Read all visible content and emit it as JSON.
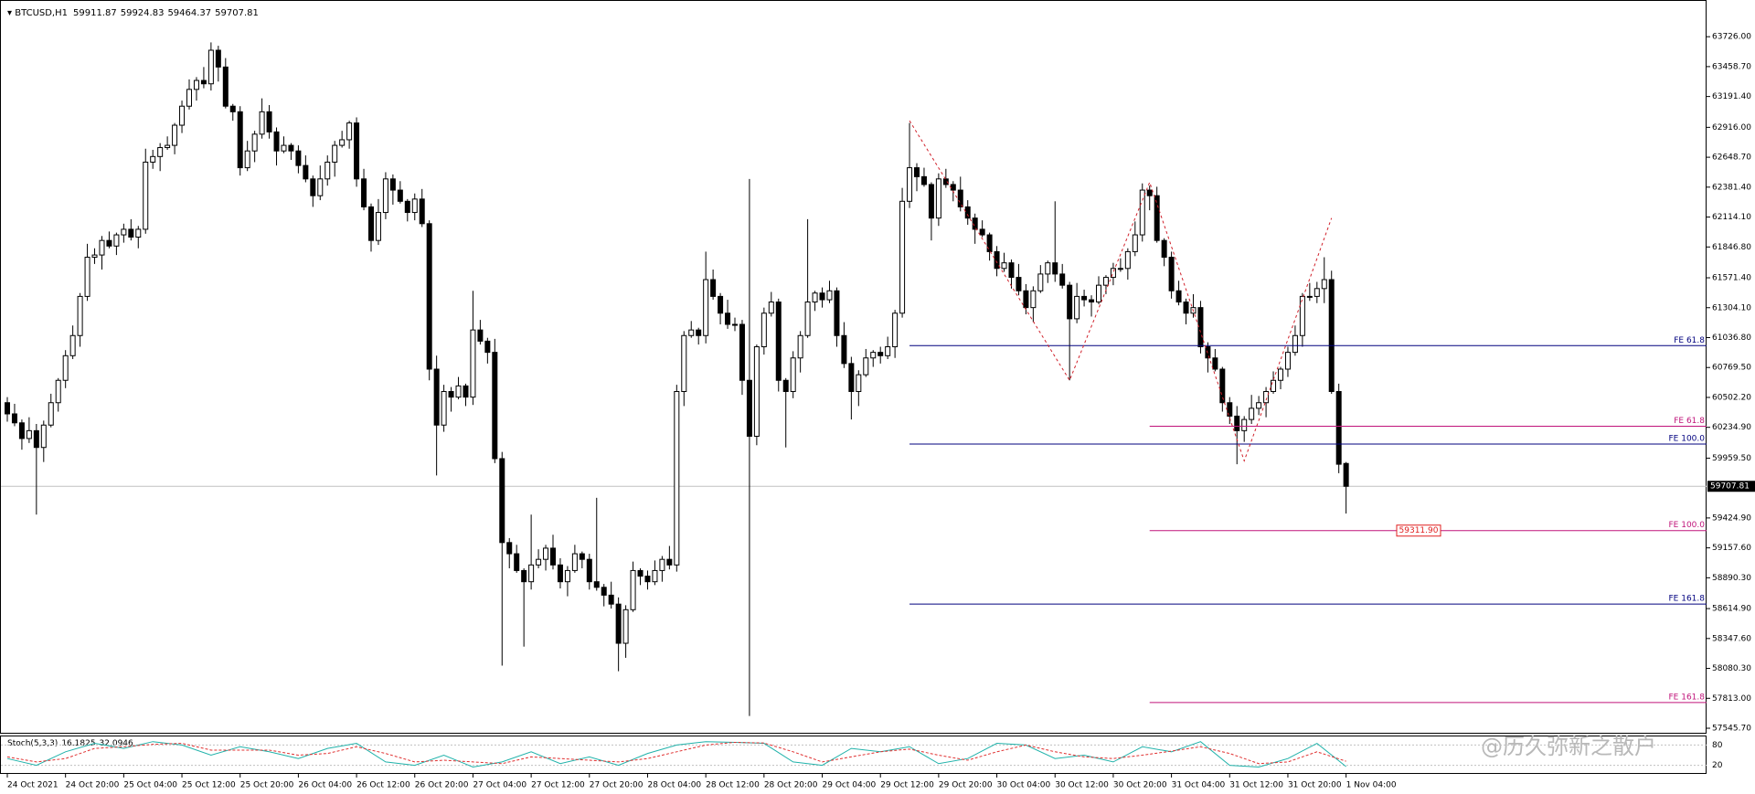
{
  "chart_data": {
    "type": "candlestick",
    "symbol": "BTCUSD,H1",
    "categories": [
      "24 Oct 2021",
      null,
      null,
      null,
      null,
      null,
      null,
      null,
      "24 Oct 20:00",
      null,
      null,
      null,
      null,
      null,
      null,
      null,
      "25 Oct 04:00",
      null,
      null,
      null,
      null,
      null,
      null,
      null,
      "25 Oct 12:00",
      null,
      null,
      null,
      null,
      null,
      null,
      null,
      "25 Oct 20:00",
      null,
      null,
      null,
      null,
      null,
      null,
      null,
      "26 Oct 04:00",
      null,
      null,
      null,
      null,
      null,
      null,
      null,
      "26 Oct 12:00",
      null,
      null,
      null,
      null,
      null,
      null,
      null,
      "26 Oct 20:00",
      null,
      null,
      null,
      null,
      null,
      null,
      null,
      "27 Oct 04:00",
      null,
      null,
      null,
      null,
      null,
      null,
      null,
      "27 Oct 12:00",
      null,
      null,
      null,
      null,
      null,
      null,
      null,
      "27 Oct 20:00",
      null,
      null,
      null,
      null,
      null,
      null,
      null,
      "28 Oct 04:00",
      null,
      null,
      null,
      null,
      null,
      null,
      null,
      "28 Oct 12:00",
      null,
      null,
      null,
      null,
      null,
      null,
      null,
      "28 Oct 20:00",
      null,
      null,
      null,
      null,
      null,
      null,
      null,
      "29 Oct 04:00",
      null,
      null,
      null,
      null,
      null,
      null,
      null,
      "29 Oct 12:00",
      null,
      null,
      null,
      null,
      null,
      null,
      null,
      "29 Oct 20:00",
      null,
      null,
      null,
      null,
      null,
      null,
      null,
      "30 Oct 04:00",
      null,
      null,
      null,
      null,
      null,
      null,
      null,
      "30 Oct 12:00",
      null,
      null,
      null,
      null,
      null,
      null,
      null,
      "30 Oct 20:00",
      null,
      null,
      null,
      null,
      null,
      null,
      null,
      "31 Oct 04:00",
      null,
      null,
      null,
      null,
      null,
      null,
      null,
      "31 Oct 12:00",
      null,
      null,
      null,
      null,
      null,
      null,
      null,
      "31 Oct 20:00",
      null,
      null,
      null,
      null,
      null,
      null,
      null,
      "1 Nov 04:00"
    ],
    "open": [
      60455,
      60355,
      60275,
      60135,
      60205,
      60055,
      60255,
      60455,
      60655,
      60875,
      61055,
      61405,
      61755,
      61775,
      61905,
      61855,
      61955,
      62005,
      61935,
      62005,
      62605,
      62655,
      62735,
      62755,
      62935,
      63105,
      63255,
      63335,
      63305,
      63605,
      63455,
      63105,
      63055,
      62555,
      62705,
      62855,
      63055,
      62875,
      62705,
      62755,
      62705,
      62575,
      62455,
      62305,
      62455,
      62605,
      62755,
      62805,
      62955,
      62455,
      62205,
      61905,
      62155,
      62455,
      62355,
      62255,
      62155,
      62275,
      62055,
      60755,
      60255,
      60555,
      60505,
      60605,
      60505,
      61105,
      61005,
      60905,
      59955,
      59205,
      59105,
      58955,
      58855,
      59005,
      59055,
      59155,
      59005,
      58855,
      58955,
      59105,
      59055,
      58855,
      58805,
      58735,
      58655,
      58305,
      58605,
      58955,
      58905,
      58855,
      58955,
      59055,
      59005,
      60555,
      61055,
      61105,
      61055,
      61555,
      61405,
      61255,
      61155,
      61155,
      60655,
      60155,
      60955,
      61255,
      61355,
      60655,
      60555,
      60855,
      61055,
      61355,
      61435,
      61375,
      61455,
      61055,
      60805,
      60555,
      60705,
      60855,
      60905,
      60875,
      60955,
      61255,
      62255,
      62555,
      62475,
      62405,
      62105,
      62455,
      62405,
      62355,
      62205,
      62105,
      62005,
      61955,
      61805,
      61655,
      61705,
      61575,
      61455,
      61305,
      61455,
      61605,
      61705,
      61605,
      61505,
      61205,
      61405,
      61375,
      61355,
      61505,
      61575,
      61655,
      61655,
      61805,
      61955,
      62355,
      62305,
      61905,
      61755,
      61455,
      61355,
      61255,
      61305,
      60955,
      60855,
      60755,
      60455,
      60335,
      60205,
      60305,
      60405,
      60455,
      60555,
      60655,
      60755,
      60905,
      61055,
      61405,
      61405,
      61475,
      61555,
      60555,
      59911.87
    ],
    "high": [
      60505,
      60445,
      60305,
      60325,
      60265,
      60295,
      60535,
      60675,
      60925,
      61145,
      61435,
      61875,
      61835,
      61945,
      61985,
      61975,
      62055,
      62095,
      62035,
      62725,
      62715,
      62775,
      62835,
      62955,
      63155,
      63345,
      63365,
      63455,
      63675,
      63645,
      63535,
      63125,
      63105,
      62795,
      62885,
      63175,
      63115,
      62915,
      62835,
      62775,
      62755,
      62665,
      62485,
      62575,
      62665,
      62795,
      62885,
      62975,
      63005,
      62545,
      62235,
      62275,
      62515,
      62495,
      62435,
      62275,
      62325,
      62365,
      62085,
      60875,
      60615,
      60595,
      60685,
      60625,
      61455,
      61195,
      61035,
      61025,
      60015,
      59245,
      59185,
      58975,
      59455,
      59145,
      59185,
      59275,
      59065,
      58995,
      59185,
      59125,
      59105,
      59605,
      58835,
      58855,
      58715,
      58645,
      59035,
      58975,
      58955,
      59045,
      59085,
      59175,
      60615,
      61095,
      61185,
      61125,
      61805,
      61645,
      61435,
      61375,
      61215,
      61195,
      62455,
      60975,
      61305,
      61445,
      61385,
      60675,
      60915,
      61095,
      62095,
      61455,
      61485,
      61545,
      61485,
      61175,
      60865,
      60745,
      60935,
      60925,
      60955,
      61045,
      61285,
      62375,
      62955,
      62595,
      62555,
      62425,
      62505,
      62545,
      62435,
      62475,
      62265,
      62145,
      62085,
      61975,
      61855,
      61795,
      61735,
      61695,
      61515,
      61495,
      61685,
      61725,
      62255,
      61695,
      61535,
      61525,
      61465,
      61415,
      61585,
      61595,
      61705,
      61745,
      61835,
      62075,
      62415,
      62395,
      62385,
      61925,
      61805,
      61545,
      61385,
      61425,
      61365,
      60995,
      60935,
      60775,
      60505,
      60425,
      60335,
      60525,
      60515,
      60595,
      60735,
      60775,
      60955,
      61145,
      61435,
      61525,
      61535,
      61755,
      61635,
      60625,
      59924.83
    ],
    "low": [
      60285,
      60245,
      60035,
      60095,
      59455,
      59925,
      60235,
      60375,
      60585,
      60845,
      60955,
      61365,
      61695,
      61645,
      61835,
      61775,
      61885,
      61905,
      61835,
      61965,
      62545,
      62525,
      62715,
      62675,
      62865,
      63075,
      63155,
      63265,
      63245,
      63325,
      63085,
      62975,
      62485,
      62525,
      62605,
      62815,
      62815,
      62575,
      62685,
      62625,
      62505,
      62425,
      62205,
      62265,
      62395,
      62475,
      62735,
      62725,
      62385,
      62175,
      61805,
      61865,
      62095,
      62225,
      62235,
      62075,
      62085,
      62025,
      60655,
      59805,
      60195,
      60375,
      60485,
      60425,
      60435,
      60975,
      60805,
      59915,
      58105,
      58975,
      58935,
      58275,
      58785,
      58975,
      58955,
      58965,
      58795,
      58725,
      58935,
      58975,
      58785,
      58775,
      58635,
      58615,
      58055,
      58175,
      58585,
      58825,
      58785,
      58825,
      58855,
      58965,
      58945,
      60425,
      61035,
      60975,
      60985,
      61375,
      61155,
      61115,
      61095,
      60525,
      57655,
      60075,
      60885,
      61225,
      60555,
      60055,
      60495,
      60725,
      61035,
      61275,
      61305,
      61345,
      60955,
      60765,
      60305,
      60425,
      60685,
      60775,
      60805,
      60845,
      60855,
      61215,
      62195,
      62345,
      62385,
      61905,
      62035,
      62375,
      62255,
      62165,
      62045,
      61875,
      61935,
      61725,
      61585,
      61625,
      61475,
      61415,
      61245,
      61175,
      61435,
      61525,
      61535,
      61475,
      60655,
      61165,
      61315,
      61225,
      61335,
      61425,
      61505,
      61625,
      61555,
      61765,
      61895,
      62175,
      61885,
      61675,
      61385,
      61325,
      61155,
      61215,
      60895,
      60725,
      60735,
      60375,
      60265,
      59905,
      60105,
      60265,
      60345,
      60325,
      60535,
      60575,
      60685,
      60875,
      60955,
      61365,
      61345,
      61345,
      60535,
      59825,
      59464.37
    ],
    "close": [
      60355,
      60275,
      60135,
      60205,
      60055,
      60255,
      60455,
      60655,
      60875,
      61055,
      61405,
      61755,
      61775,
      61905,
      61855,
      61955,
      62005,
      61935,
      62005,
      62605,
      62655,
      62735,
      62755,
      62935,
      63105,
      63255,
      63335,
      63305,
      63605,
      63455,
      63105,
      63055,
      62555,
      62705,
      62855,
      63055,
      62875,
      62705,
      62755,
      62705,
      62575,
      62455,
      62305,
      62455,
      62605,
      62755,
      62805,
      62955,
      62455,
      62205,
      61905,
      62155,
      62455,
      62355,
      62255,
      62155,
      62275,
      62055,
      60755,
      60255,
      60555,
      60505,
      60605,
      60505,
      61105,
      61005,
      60905,
      59955,
      59205,
      59105,
      58955,
      58855,
      59005,
      59055,
      59155,
      59005,
      58855,
      58955,
      59105,
      59055,
      58855,
      58805,
      58735,
      58655,
      58305,
      58605,
      58955,
      58905,
      58855,
      58955,
      59055,
      59005,
      60555,
      61055,
      61105,
      61055,
      61555,
      61405,
      61255,
      61155,
      61155,
      60655,
      60155,
      60955,
      61255,
      61355,
      60655,
      60555,
      60855,
      61055,
      61355,
      61435,
      61375,
      61455,
      61055,
      60805,
      60555,
      60705,
      60855,
      60905,
      60875,
      60955,
      61255,
      62255,
      62555,
      62475,
      62405,
      62105,
      62455,
      62405,
      62355,
      62205,
      62105,
      62005,
      61955,
      61805,
      61655,
      61705,
      61575,
      61455,
      61305,
      61455,
      61605,
      61705,
      61605,
      61505,
      61205,
      61405,
      61375,
      61355,
      61505,
      61575,
      61655,
      61655,
      61805,
      61955,
      62355,
      62305,
      61905,
      61755,
      61455,
      61355,
      61255,
      61305,
      60955,
      60855,
      60755,
      60455,
      60335,
      60205,
      60305,
      60405,
      60455,
      60555,
      60655,
      60755,
      60905,
      61055,
      61405,
      61405,
      61475,
      61555,
      60555,
      59905,
      59707.81
    ],
    "up_color": "#ffffff",
    "down_color": "#000000",
    "ylim": [
      57505,
      64005
    ],
    "yticks": [
      {
        "value": 63726,
        "label": "63726.00"
      },
      {
        "value": 63458.7,
        "label": "63458.70"
      },
      {
        "value": 63191.4,
        "label": "63191.40"
      },
      {
        "value": 62916,
        "label": "62916.00"
      },
      {
        "value": 62648.7,
        "label": "62648.70"
      },
      {
        "value": 62381.4,
        "label": "62381.40"
      },
      {
        "value": 62114.1,
        "label": "62114.10"
      },
      {
        "value": 61846.8,
        "label": "61846.80"
      },
      {
        "value": 61571.4,
        "label": "61571.40"
      },
      {
        "value": 61304.1,
        "label": "61304.10"
      },
      {
        "value": 61036.8,
        "label": "61036.80"
      },
      {
        "value": 60769.5,
        "label": "60769.50"
      },
      {
        "value": 60502.2,
        "label": "60502.20"
      },
      {
        "value": 60234.9,
        "label": "60234.90"
      },
      {
        "value": 59959.5,
        "label": "59959.50"
      },
      {
        "value": 59424.9,
        "label": "59424.90"
      },
      {
        "value": 59157.6,
        "label": "59157.60"
      },
      {
        "value": 58890.3,
        "label": "58890.30"
      },
      {
        "value": 58614.9,
        "label": "58614.90"
      },
      {
        "value": 58347.6,
        "label": "58347.60"
      },
      {
        "value": 58080.3,
        "label": "58080.30"
      },
      {
        "value": 57813,
        "label": "57813.00"
      },
      {
        "value": 57545.7,
        "label": "57545.70"
      }
    ],
    "levels": [
      {
        "label": "FE 61.8",
        "value": 60965,
        "color": "#00007f",
        "start": 124
      },
      {
        "label": "FE 100.0",
        "value": 60085,
        "color": "#00007f",
        "start": 124
      },
      {
        "label": "FE 161.8",
        "value": 58655,
        "color": "#00007f",
        "start": 124
      },
      {
        "label": "FE 61.8",
        "value": 60245,
        "color": "#c0147a",
        "start": 157
      },
      {
        "label": "FE 100.0",
        "value": 59311.9,
        "value_label": "59311.90",
        "color": "#c0147a",
        "start": 157
      },
      {
        "label": "FE 161.8",
        "value": 57775,
        "color": "#c0147a",
        "start": 157
      }
    ],
    "pattern": {
      "color": "#d0202a",
      "x": [
        124,
        146,
        157,
        170,
        182
      ],
      "y": [
        62975,
        60655,
        62425,
        59935,
        62105
      ]
    },
    "indicator": {
      "name": "Stoch(5,3,3)",
      "ylim": [
        0,
        100
      ],
      "yticks": [
        80,
        20
      ],
      "x": [
        0,
        4,
        8,
        12,
        16,
        20,
        24,
        28,
        32,
        36,
        40,
        44,
        48,
        52,
        56,
        60,
        64,
        68,
        72,
        76,
        80,
        84,
        88,
        92,
        96,
        100,
        104,
        108,
        112,
        116,
        120,
        124,
        128,
        132,
        136,
        140,
        144,
        148,
        152,
        156,
        160,
        164,
        168,
        172,
        176,
        180,
        184
      ],
      "series": [
        {
          "color": "#20b2aa",
          "values": [
            40,
            20,
            60,
            85,
            70,
            90,
            80,
            50,
            75,
            60,
            40,
            70,
            85,
            30,
            20,
            50,
            15,
            30,
            60,
            25,
            45,
            20,
            55,
            80,
            90,
            88,
            85,
            30,
            20,
            70,
            60,
            75,
            25,
            40,
            85,
            80,
            40,
            50,
            30,
            75,
            60,
            90,
            20,
            15,
            40,
            85,
            16.1825
          ]
        },
        {
          "color": "#e03030",
          "values": [
            45,
            30,
            40,
            70,
            75,
            82,
            85,
            65,
            65,
            65,
            50,
            55,
            75,
            55,
            30,
            35,
            30,
            25,
            45,
            40,
            35,
            30,
            40,
            60,
            80,
            88,
            86,
            60,
            30,
            45,
            60,
            68,
            50,
            35,
            60,
            80,
            60,
            45,
            40,
            50,
            62,
            75,
            55,
            25,
            30,
            60,
            32.0946
          ]
        }
      ]
    },
    "watermark": "@历久弥新之散户"
  }
}
